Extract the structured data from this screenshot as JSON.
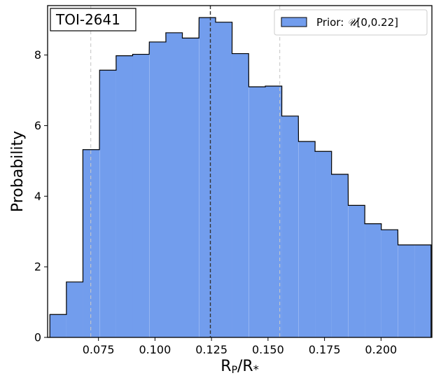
{
  "chart_data": {
    "type": "bar",
    "title": "",
    "annotation": "TOI-2641",
    "xlabel_main": "R",
    "xlabel_sub1": "P",
    "xlabel_mid": "/R",
    "xlabel_sub2": "*",
    "ylabel": "Probability",
    "xlim": [
      0.0525,
      0.2225
    ],
    "ylim": [
      0,
      9.4
    ],
    "xticks": [
      0.075,
      0.1,
      0.125,
      0.15,
      0.175,
      0.2
    ],
    "xtick_labels": [
      "0.075",
      "0.100",
      "0.125",
      "0.150",
      "0.175",
      "0.200"
    ],
    "yticks": [
      0,
      2,
      4,
      6,
      8
    ],
    "ytick_labels": [
      "0",
      "2",
      "4",
      "6",
      "8"
    ],
    "bin_width": 0.00733,
    "bin_lefts": [
      0.0535,
      0.0608,
      0.0681,
      0.0755,
      0.0828,
      0.0901,
      0.0975,
      0.1048,
      0.1121,
      0.1195,
      0.1268,
      0.1341,
      0.1415,
      0.1488,
      0.1561,
      0.1635,
      0.1708,
      0.1781,
      0.1855,
      0.1928,
      0.2001,
      0.2075,
      0.2148
    ],
    "values": [
      0.65,
      1.57,
      5.32,
      7.57,
      7.98,
      8.02,
      8.37,
      8.63,
      8.48,
      9.06,
      8.93,
      8.04,
      7.1,
      7.12,
      6.27,
      5.55,
      5.27,
      4.62,
      3.74,
      3.22,
      3.05,
      2.62,
      2.62
    ],
    "median": 0.1245,
    "lower": 0.0716,
    "upper": 0.1552,
    "bar_color": "#729ded",
    "edge_color": "#000000",
    "legend": {
      "label_prefix": "Prior: ",
      "label_symbol": "𝒰",
      "label_range": "[0,0.22]",
      "position": "top-right"
    },
    "grid": false
  }
}
